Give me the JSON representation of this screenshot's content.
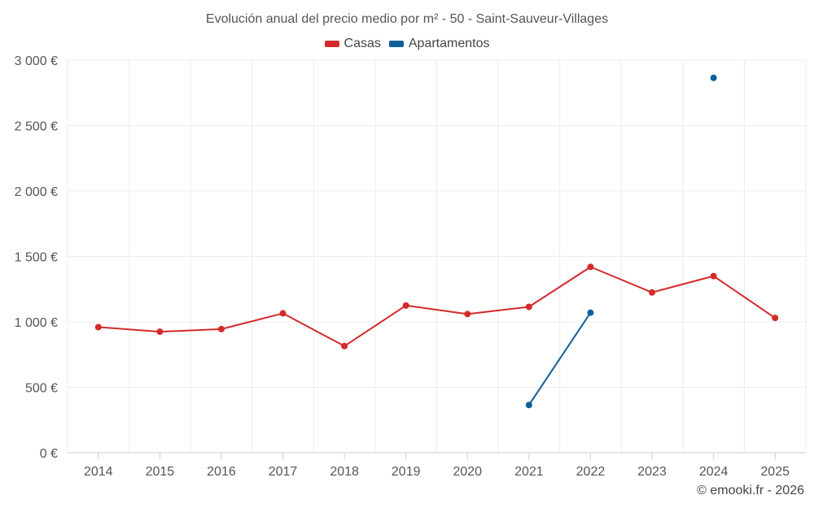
{
  "chart_data": {
    "type": "line",
    "title": "Evolución anual del precio medio por m² - 50 - Saint-Sauveur-Villages",
    "xlabel": "",
    "ylabel": "",
    "categories": [
      "2014",
      "2015",
      "2016",
      "2017",
      "2018",
      "2019",
      "2020",
      "2021",
      "2022",
      "2023",
      "2024",
      "2025"
    ],
    "ylim": [
      0,
      3000
    ],
    "yticks": [
      0,
      500,
      1000,
      1500,
      2000,
      2500,
      3000
    ],
    "ytick_labels": [
      "0 €",
      "500 €",
      "1 000 €",
      "1 500 €",
      "2 000 €",
      "2 500 €",
      "3 000 €"
    ],
    "grid": true,
    "legend_position": "top-center",
    "series": [
      {
        "name": "Casas",
        "color": "#d42a2a",
        "values": [
          960,
          925,
          945,
          1065,
          815,
          1125,
          1060,
          1115,
          1420,
          1225,
          1350,
          1030
        ]
      },
      {
        "name": "Apartamentos",
        "color": "#0f5f99",
        "values": [
          null,
          null,
          null,
          null,
          null,
          null,
          null,
          365,
          1070,
          null,
          2865,
          null
        ]
      }
    ],
    "credit": "© emooki.fr - 2026"
  }
}
